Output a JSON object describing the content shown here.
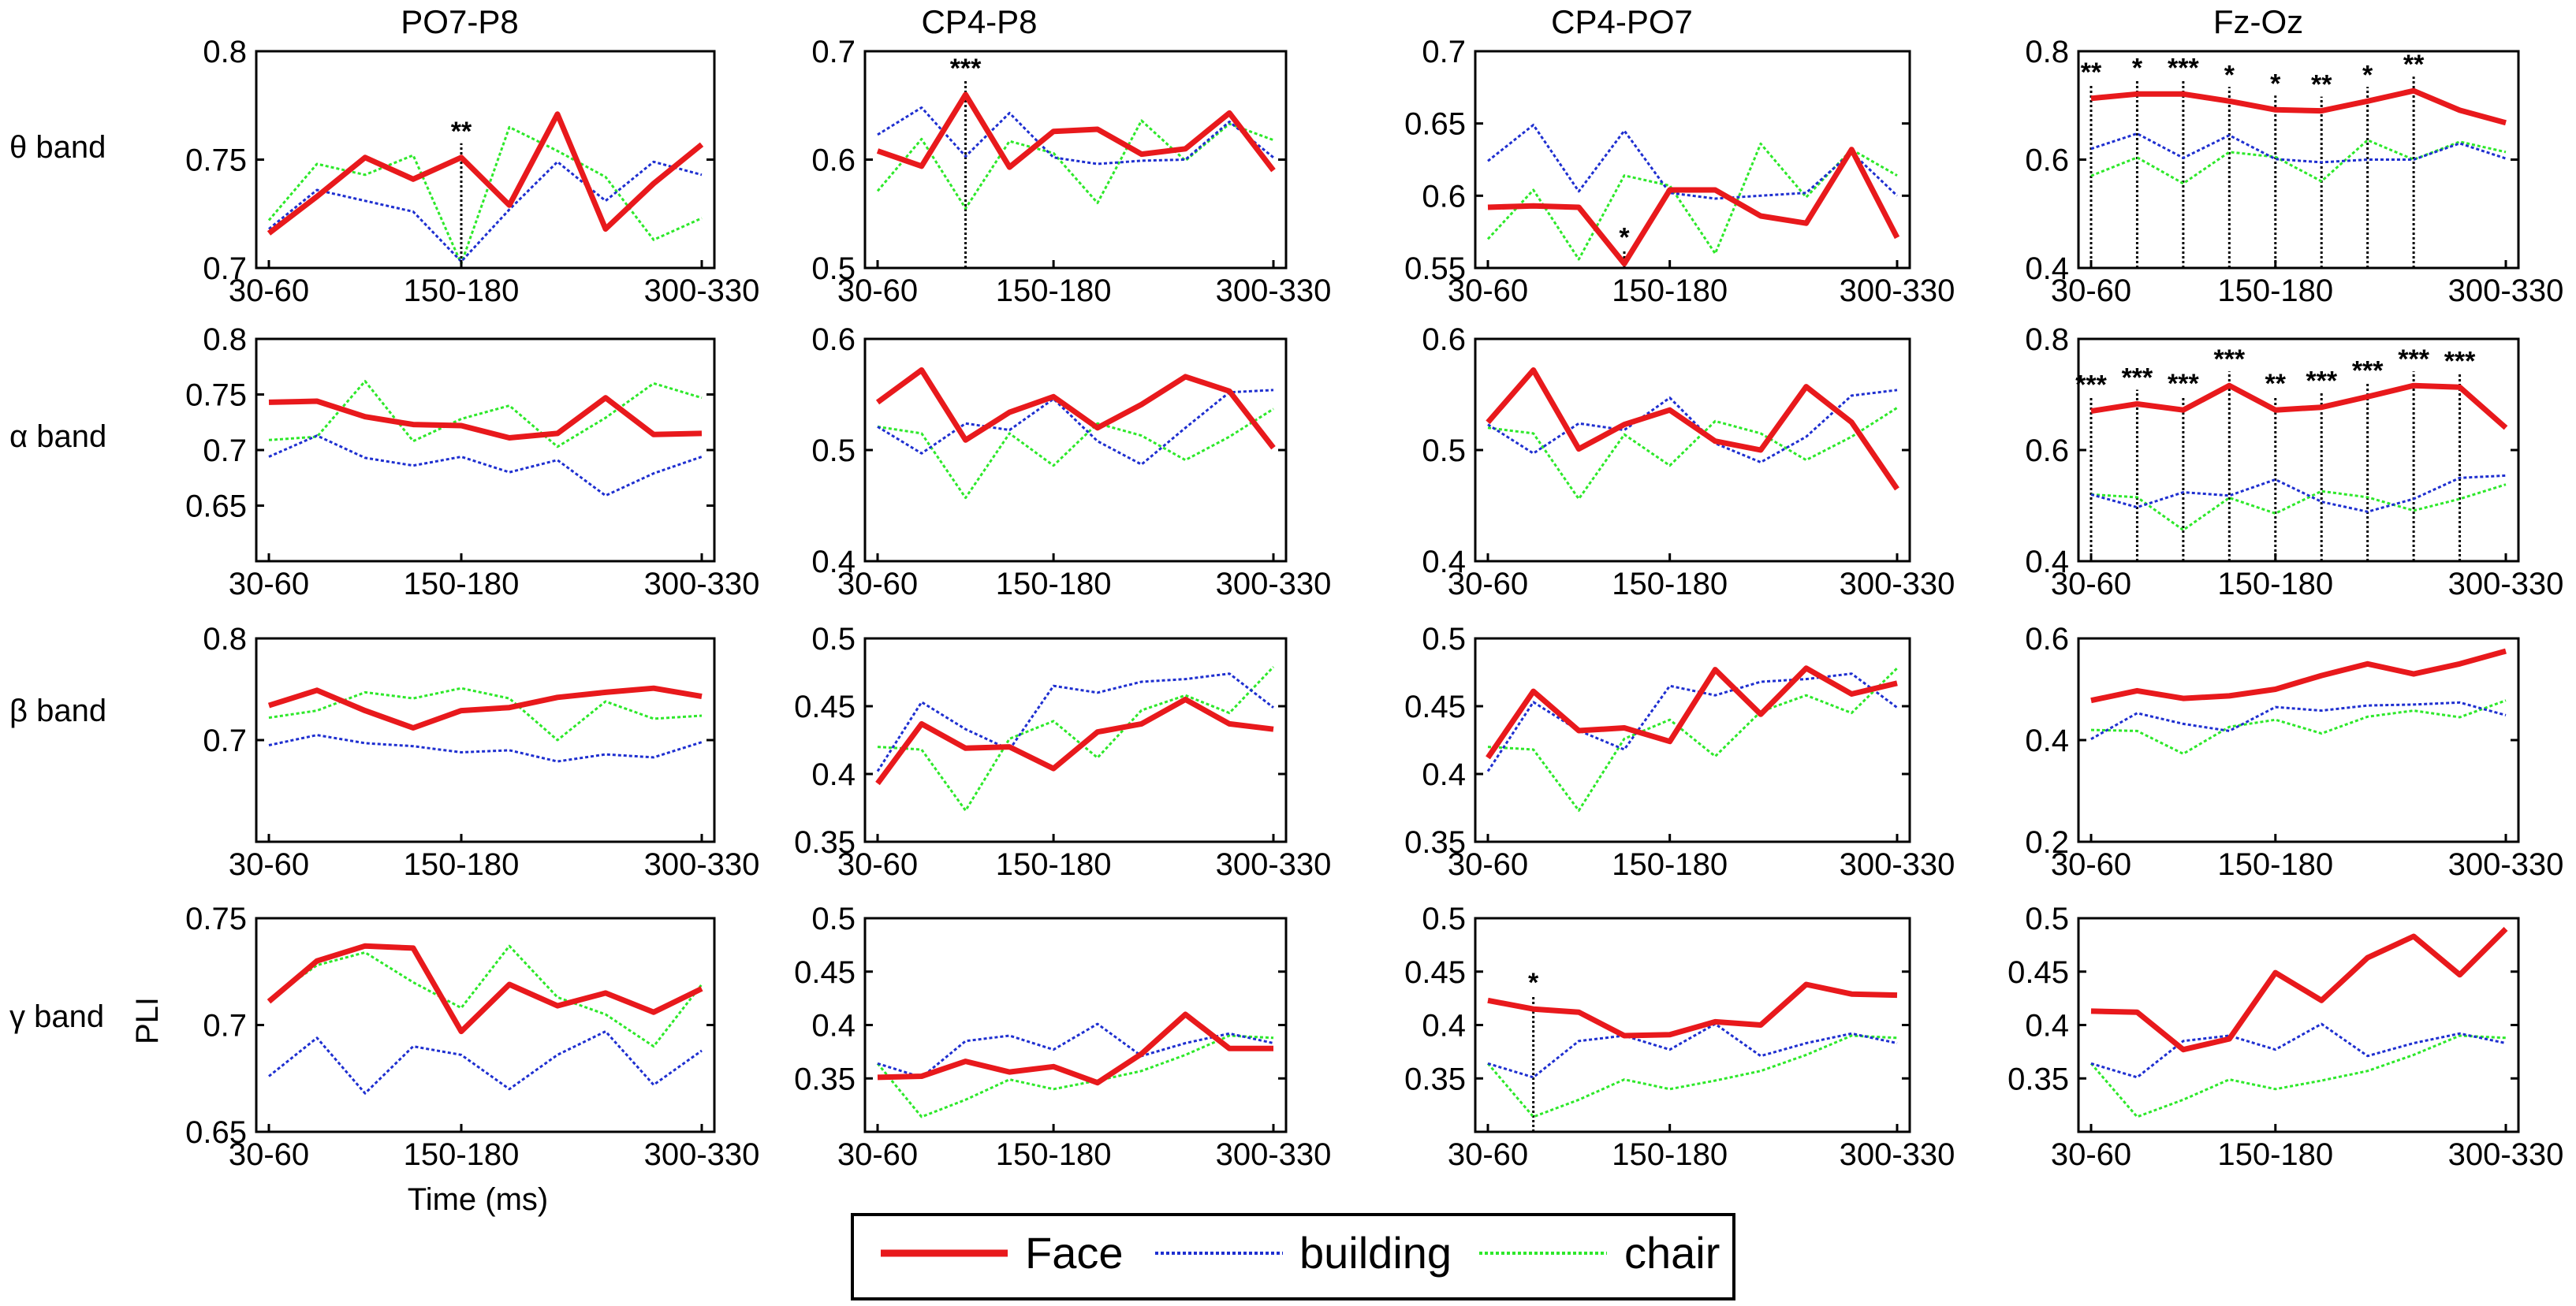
{
  "figure": {
    "columns": [
      "PO7-P8",
      "CP4-P8",
      "CP4-PO7",
      "Fz-Oz"
    ],
    "bands": [
      "θ band",
      "α band",
      "β band",
      "γ band"
    ],
    "ylabel": "PLI",
    "xlabel": "Time (ms)",
    "xtick_labels": [
      "30-60",
      "150-180",
      "300-330"
    ],
    "legend": [
      "Face",
      "building",
      "chair"
    ],
    "colors": {
      "Face": "#e8191c",
      "building": "#1e2fd0",
      "chair": "#2de82a"
    }
  },
  "chart_data": [
    {
      "type": "line",
      "band": "θ band",
      "title": "PO7-P8",
      "ylim": [
        0.7,
        0.8
      ],
      "yticks": [
        "0.7",
        "0.75",
        "0.8"
      ],
      "series": [
        {
          "name": "Face",
          "values": [
            0.716,
            0.733,
            0.751,
            0.741,
            0.751,
            0.729,
            0.771,
            0.718,
            0.739,
            0.757
          ]
        },
        {
          "name": "building",
          "values": [
            0.718,
            0.736,
            0.731,
            0.726,
            0.703,
            0.727,
            0.749,
            0.731,
            0.749,
            0.743
          ]
        },
        {
          "name": "chair",
          "values": [
            0.722,
            0.748,
            0.743,
            0.752,
            0.702,
            0.765,
            0.754,
            0.742,
            0.713,
            0.723
          ]
        }
      ],
      "markers": [
        {
          "index": 4,
          "label": "**"
        }
      ]
    },
    {
      "type": "line",
      "band": "θ band",
      "title": "CP4-P8",
      "ylim": [
        0.5,
        0.7
      ],
      "yticks": [
        "0.5",
        "0.6",
        "0.7"
      ],
      "series": [
        {
          "name": "Face",
          "values": [
            0.608,
            0.594,
            0.66,
            0.593,
            0.626,
            0.628,
            0.605,
            0.61,
            0.643,
            0.59
          ]
        },
        {
          "name": "building",
          "values": [
            0.623,
            0.648,
            0.603,
            0.643,
            0.602,
            0.596,
            0.599,
            0.6,
            0.635,
            0.602
          ]
        },
        {
          "name": "chair",
          "values": [
            0.571,
            0.619,
            0.555,
            0.617,
            0.606,
            0.56,
            0.636,
            0.599,
            0.633,
            0.618
          ]
        }
      ],
      "markers": [
        {
          "index": 2,
          "label": "***"
        }
      ]
    },
    {
      "type": "line",
      "band": "θ band",
      "title": "CP4-PO7",
      "ylim": [
        0.55,
        0.7
      ],
      "yticks": [
        "0.55",
        "0.6",
        "0.65",
        "0.7"
      ],
      "series": [
        {
          "name": "Face",
          "values": [
            0.592,
            0.593,
            0.592,
            0.553,
            0.604,
            0.604,
            0.586,
            0.581,
            0.632,
            0.571
          ]
        },
        {
          "name": "building",
          "values": [
            0.624,
            0.649,
            0.603,
            0.645,
            0.602,
            0.598,
            0.6,
            0.602,
            0.63,
            0.6
          ]
        },
        {
          "name": "chair",
          "values": [
            0.57,
            0.604,
            0.556,
            0.614,
            0.607,
            0.56,
            0.636,
            0.599,
            0.632,
            0.614
          ]
        }
      ],
      "markers": [
        {
          "index": 3,
          "label": "*"
        }
      ]
    },
    {
      "type": "line",
      "band": "θ band",
      "title": "Fz-Oz",
      "ylim": [
        0.4,
        0.8
      ],
      "yticks": [
        "0.4",
        "0.6",
        "0.8"
      ],
      "series": [
        {
          "name": "Face",
          "values": [
            0.713,
            0.721,
            0.721,
            0.708,
            0.692,
            0.69,
            0.708,
            0.727,
            0.691,
            0.668
          ]
        },
        {
          "name": "building",
          "values": [
            0.62,
            0.648,
            0.603,
            0.645,
            0.601,
            0.595,
            0.6,
            0.6,
            0.63,
            0.602
          ]
        },
        {
          "name": "chair",
          "values": [
            0.57,
            0.604,
            0.556,
            0.614,
            0.605,
            0.56,
            0.636,
            0.6,
            0.633,
            0.614
          ]
        }
      ],
      "markers": [
        {
          "index": 0,
          "label": "**"
        },
        {
          "index": 1,
          "label": "*"
        },
        {
          "index": 2,
          "label": "***"
        },
        {
          "index": 3,
          "label": "*"
        },
        {
          "index": 4,
          "label": "*"
        },
        {
          "index": 5,
          "label": "**"
        },
        {
          "index": 6,
          "label": "*"
        },
        {
          "index": 7,
          "label": "**"
        }
      ]
    },
    {
      "type": "line",
      "band": "α band",
      "title": "PO7-P8",
      "ylim": [
        0.6,
        0.8
      ],
      "yticks": [
        "0.65",
        "0.7",
        "0.75",
        "0.8"
      ],
      "series": [
        {
          "name": "Face",
          "values": [
            0.743,
            0.744,
            0.73,
            0.723,
            0.722,
            0.711,
            0.715,
            0.747,
            0.714,
            0.715
          ]
        },
        {
          "name": "building",
          "values": [
            0.694,
            0.713,
            0.693,
            0.686,
            0.694,
            0.68,
            0.691,
            0.659,
            0.679,
            0.694
          ]
        },
        {
          "name": "chair",
          "values": [
            0.709,
            0.712,
            0.762,
            0.708,
            0.728,
            0.74,
            0.703,
            0.729,
            0.76,
            0.747
          ]
        }
      ],
      "markers": []
    },
    {
      "type": "line",
      "band": "α band",
      "title": "CP4-P8",
      "ylim": [
        0.4,
        0.6
      ],
      "yticks": [
        "0.4",
        "0.5",
        "0.6"
      ],
      "series": [
        {
          "name": "Face",
          "values": [
            0.543,
            0.572,
            0.509,
            0.534,
            0.548,
            0.52,
            0.541,
            0.566,
            0.553,
            0.502
          ]
        },
        {
          "name": "building",
          "values": [
            0.521,
            0.497,
            0.524,
            0.518,
            0.546,
            0.508,
            0.487,
            0.52,
            0.552,
            0.554
          ]
        },
        {
          "name": "chair",
          "values": [
            0.521,
            0.515,
            0.457,
            0.515,
            0.486,
            0.524,
            0.513,
            0.491,
            0.512,
            0.537
          ]
        }
      ],
      "markers": []
    },
    {
      "type": "line",
      "band": "α band",
      "title": "CP4-PO7",
      "ylim": [
        0.4,
        0.6
      ],
      "yticks": [
        "0.4",
        "0.5",
        "0.6"
      ],
      "series": [
        {
          "name": "Face",
          "values": [
            0.525,
            0.572,
            0.501,
            0.523,
            0.536,
            0.508,
            0.5,
            0.557,
            0.525,
            0.465
          ]
        },
        {
          "name": "building",
          "values": [
            0.523,
            0.497,
            0.524,
            0.518,
            0.547,
            0.506,
            0.489,
            0.512,
            0.549,
            0.554
          ]
        },
        {
          "name": "chair",
          "values": [
            0.52,
            0.515,
            0.456,
            0.514,
            0.486,
            0.526,
            0.515,
            0.491,
            0.512,
            0.538
          ]
        }
      ],
      "markers": []
    },
    {
      "type": "line",
      "band": "α band",
      "title": "Fz-Oz",
      "ylim": [
        0.4,
        0.8
      ],
      "yticks": [
        "0.4",
        "0.6",
        "0.8"
      ],
      "series": [
        {
          "name": "Face",
          "values": [
            0.67,
            0.683,
            0.672,
            0.716,
            0.672,
            0.677,
            0.696,
            0.716,
            0.713,
            0.64
          ]
        },
        {
          "name": "building",
          "values": [
            0.52,
            0.497,
            0.524,
            0.518,
            0.547,
            0.507,
            0.489,
            0.512,
            0.55,
            0.554
          ]
        },
        {
          "name": "chair",
          "values": [
            0.52,
            0.515,
            0.456,
            0.514,
            0.486,
            0.526,
            0.515,
            0.491,
            0.512,
            0.538
          ]
        }
      ],
      "markers": [
        {
          "index": 0,
          "label": "***"
        },
        {
          "index": 1,
          "label": "***"
        },
        {
          "index": 2,
          "label": "***"
        },
        {
          "index": 3,
          "label": "***"
        },
        {
          "index": 4,
          "label": "**"
        },
        {
          "index": 5,
          "label": "***"
        },
        {
          "index": 6,
          "label": "***"
        },
        {
          "index": 7,
          "label": "***"
        },
        {
          "index": 8,
          "label": "***"
        }
      ]
    },
    {
      "type": "line",
      "band": "β band",
      "title": "PO7-P8",
      "ylim": [
        0.6,
        0.8
      ],
      "yticks": [
        "0.7",
        "0.8"
      ],
      "series": [
        {
          "name": "Face",
          "values": [
            0.734,
            0.749,
            0.729,
            0.712,
            0.729,
            0.732,
            0.742,
            0.747,
            0.751,
            0.743
          ]
        },
        {
          "name": "building",
          "values": [
            0.695,
            0.705,
            0.697,
            0.694,
            0.688,
            0.69,
            0.679,
            0.686,
            0.683,
            0.698
          ]
        },
        {
          "name": "chair",
          "values": [
            0.722,
            0.729,
            0.747,
            0.741,
            0.751,
            0.741,
            0.7,
            0.738,
            0.721,
            0.724
          ]
        }
      ],
      "markers": []
    },
    {
      "type": "line",
      "band": "β band",
      "title": "CP4-P8",
      "ylim": [
        0.35,
        0.5
      ],
      "yticks": [
        "0.35",
        "0.4",
        "0.45",
        "0.5"
      ],
      "series": [
        {
          "name": "Face",
          "values": [
            0.393,
            0.437,
            0.419,
            0.42,
            0.404,
            0.431,
            0.437,
            0.455,
            0.437,
            0.433
          ]
        },
        {
          "name": "building",
          "values": [
            0.402,
            0.453,
            0.433,
            0.418,
            0.465,
            0.46,
            0.468,
            0.47,
            0.474,
            0.449
          ]
        },
        {
          "name": "chair",
          "values": [
            0.42,
            0.418,
            0.373,
            0.426,
            0.439,
            0.412,
            0.447,
            0.458,
            0.445,
            0.479
          ]
        }
      ],
      "markers": []
    },
    {
      "type": "line",
      "band": "β band",
      "title": "CP4-PO7",
      "ylim": [
        0.35,
        0.5
      ],
      "yticks": [
        "0.35",
        "0.4",
        "0.45",
        "0.5"
      ],
      "series": [
        {
          "name": "Face",
          "values": [
            0.412,
            0.461,
            0.432,
            0.434,
            0.424,
            0.477,
            0.444,
            0.478,
            0.459,
            0.467
          ]
        },
        {
          "name": "building",
          "values": [
            0.402,
            0.453,
            0.432,
            0.418,
            0.465,
            0.458,
            0.468,
            0.47,
            0.474,
            0.449
          ]
        },
        {
          "name": "chair",
          "values": [
            0.42,
            0.418,
            0.373,
            0.426,
            0.44,
            0.413,
            0.446,
            0.458,
            0.445,
            0.478
          ]
        }
      ],
      "markers": []
    },
    {
      "type": "line",
      "band": "β band",
      "title": "Fz-Oz",
      "ylim": [
        0.2,
        0.6
      ],
      "yticks": [
        "0.2",
        "0.4",
        "0.6"
      ],
      "series": [
        {
          "name": "Face",
          "values": [
            0.478,
            0.497,
            0.482,
            0.487,
            0.5,
            0.527,
            0.55,
            0.53,
            0.55,
            0.575
          ]
        },
        {
          "name": "building",
          "values": [
            0.402,
            0.453,
            0.432,
            0.418,
            0.465,
            0.458,
            0.468,
            0.47,
            0.474,
            0.449
          ]
        },
        {
          "name": "chair",
          "values": [
            0.42,
            0.418,
            0.373,
            0.426,
            0.44,
            0.413,
            0.446,
            0.458,
            0.445,
            0.478
          ]
        }
      ],
      "markers": []
    },
    {
      "type": "line",
      "band": "γ band",
      "title": "PO7-P8",
      "ylim": [
        0.65,
        0.75
      ],
      "yticks": [
        "0.65",
        "0.7",
        "0.75"
      ],
      "series": [
        {
          "name": "Face",
          "values": [
            0.711,
            0.73,
            0.737,
            0.736,
            0.697,
            0.719,
            0.709,
            0.715,
            0.706,
            0.717
          ]
        },
        {
          "name": "building",
          "values": [
            0.676,
            0.694,
            0.668,
            0.69,
            0.686,
            0.67,
            0.686,
            0.697,
            0.672,
            0.688
          ]
        },
        {
          "name": "chair",
          "values": [
            0.712,
            0.728,
            0.734,
            0.72,
            0.708,
            0.737,
            0.713,
            0.705,
            0.69,
            0.719
          ]
        }
      ],
      "markers": []
    },
    {
      "type": "line",
      "band": "γ band",
      "title": "CP4-P8",
      "ylim": [
        0.3,
        0.5
      ],
      "yticks": [
        "0.35",
        "0.4",
        "0.45",
        "0.5"
      ],
      "series": [
        {
          "name": "Face",
          "values": [
            0.351,
            0.352,
            0.366,
            0.356,
            0.361,
            0.346,
            0.373,
            0.41,
            0.378,
            0.378
          ]
        },
        {
          "name": "building",
          "values": [
            0.364,
            0.351,
            0.385,
            0.39,
            0.377,
            0.401,
            0.371,
            0.383,
            0.392,
            0.383
          ]
        },
        {
          "name": "chair",
          "values": [
            0.364,
            0.314,
            0.33,
            0.349,
            0.34,
            0.348,
            0.357,
            0.372,
            0.39,
            0.388
          ]
        }
      ],
      "markers": []
    },
    {
      "type": "line",
      "band": "γ band",
      "title": "CP4-PO7",
      "ylim": [
        0.3,
        0.5
      ],
      "yticks": [
        "0.35",
        "0.4",
        "0.45",
        "0.5"
      ],
      "series": [
        {
          "name": "Face",
          "values": [
            0.423,
            0.415,
            0.412,
            0.39,
            0.391,
            0.403,
            0.4,
            0.438,
            0.429,
            0.428
          ]
        },
        {
          "name": "building",
          "values": [
            0.364,
            0.351,
            0.385,
            0.39,
            0.377,
            0.401,
            0.371,
            0.383,
            0.392,
            0.383
          ]
        },
        {
          "name": "chair",
          "values": [
            0.364,
            0.314,
            0.33,
            0.349,
            0.34,
            0.348,
            0.357,
            0.372,
            0.39,
            0.388
          ]
        }
      ],
      "markers": [
        {
          "index": 1,
          "label": "*"
        }
      ]
    },
    {
      "type": "line",
      "band": "γ band",
      "title": "Fz-Oz",
      "ylim": [
        0.3,
        0.5
      ],
      "yticks": [
        "0.35",
        "0.4",
        "0.45",
        "0.5"
      ],
      "series": [
        {
          "name": "Face",
          "values": [
            0.413,
            0.412,
            0.377,
            0.387,
            0.449,
            0.423,
            0.463,
            0.483,
            0.447,
            0.49
          ]
        },
        {
          "name": "building",
          "values": [
            0.364,
            0.351,
            0.385,
            0.39,
            0.377,
            0.401,
            0.371,
            0.383,
            0.392,
            0.383
          ]
        },
        {
          "name": "chair",
          "values": [
            0.364,
            0.314,
            0.33,
            0.349,
            0.34,
            0.348,
            0.357,
            0.372,
            0.39,
            0.388
          ]
        }
      ],
      "markers": []
    }
  ]
}
